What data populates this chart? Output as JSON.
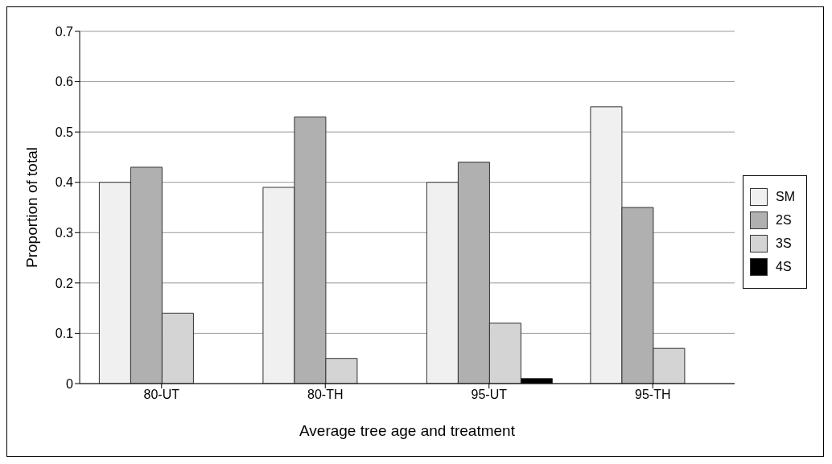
{
  "chart_data": {
    "type": "bar",
    "xlabel": "Average tree age and treatment",
    "ylabel": "Proportion of total",
    "categories": [
      "80-UT",
      "80-TH",
      "95-UT",
      "95-TH"
    ],
    "series": [
      {
        "name": "SM",
        "color": "#f0f0f0",
        "values": [
          0.4,
          0.39,
          0.4,
          0.55
        ]
      },
      {
        "name": "2S",
        "color": "#b0b0b0",
        "values": [
          0.43,
          0.53,
          0.44,
          0.35
        ]
      },
      {
        "name": "3S",
        "color": "#d4d4d4",
        "values": [
          0.14,
          0.05,
          0.12,
          0.07
        ]
      },
      {
        "name": "4S",
        "color": "#000000",
        "values": [
          0,
          0,
          0.01,
          0
        ]
      }
    ],
    "ylim": [
      0,
      0.7
    ],
    "yticks": [
      0,
      0.1,
      0.2,
      0.3,
      0.4,
      0.5,
      0.6,
      0.7
    ],
    "grid": "y",
    "legend": "right"
  }
}
